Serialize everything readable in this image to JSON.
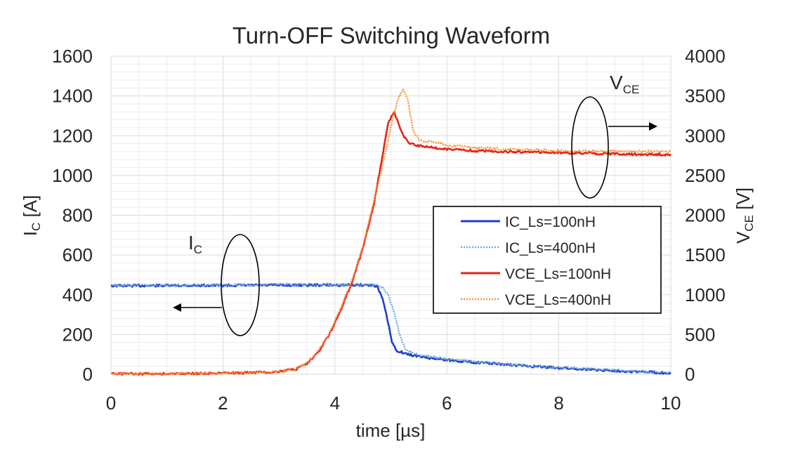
{
  "chart_data": {
    "type": "line",
    "title": "Turn-OFF Switching Waveform",
    "xlabel": "time [µs]",
    "ylabel_left": {
      "main": "I",
      "sub": "C",
      "unit": " [A]"
    },
    "ylabel_right": {
      "main": "V",
      "sub": "CE",
      "unit": " [V]"
    },
    "xlim": [
      0,
      10
    ],
    "ylim_left": [
      0,
      1600
    ],
    "ylim_right": [
      0,
      4000
    ],
    "x_ticks": [
      "0",
      "2",
      "4",
      "6",
      "8",
      "10"
    ],
    "y_left_ticks": [
      "0",
      "200",
      "400",
      "600",
      "800",
      "1000",
      "1200",
      "1400",
      "1600"
    ],
    "y_right_ticks": [
      "0",
      "500",
      "1000",
      "1500",
      "2000",
      "2500",
      "3000",
      "3500",
      "4000"
    ],
    "grid": true,
    "legend_position": "center-right",
    "annotations": {
      "ic": {
        "main": "I",
        "sub": "C"
      },
      "vce": {
        "main": "V",
        "sub": "CE"
      }
    },
    "series": [
      {
        "name": "IC_Ls=100nH",
        "axis": "left",
        "color": "#1f3fc8",
        "dash": "solid",
        "points": [
          [
            0,
            445
          ],
          [
            1,
            446
          ],
          [
            2,
            447
          ],
          [
            3,
            448
          ],
          [
            4,
            449
          ],
          [
            4.6,
            449
          ],
          [
            4.75,
            445
          ],
          [
            4.85,
            380
          ],
          [
            4.95,
            260
          ],
          [
            5.02,
            160
          ],
          [
            5.1,
            120
          ],
          [
            5.3,
            100
          ],
          [
            5.6,
            85
          ],
          [
            6,
            72
          ],
          [
            6.5,
            60
          ],
          [
            7,
            50
          ],
          [
            7.5,
            40
          ],
          [
            8,
            32
          ],
          [
            8.5,
            25
          ],
          [
            9,
            18
          ],
          [
            9.5,
            12
          ],
          [
            10,
            6
          ]
        ]
      },
      {
        "name": "IC_Ls=400nH",
        "axis": "left",
        "color": "#6ea8e0",
        "dash": "dotted",
        "points": [
          [
            0,
            447
          ],
          [
            1,
            448
          ],
          [
            2,
            449
          ],
          [
            3,
            450
          ],
          [
            4,
            451
          ],
          [
            4.7,
            451
          ],
          [
            4.85,
            440
          ],
          [
            4.95,
            400
          ],
          [
            5.05,
            320
          ],
          [
            5.15,
            210
          ],
          [
            5.25,
            130
          ],
          [
            5.4,
            103
          ],
          [
            5.7,
            88
          ],
          [
            6,
            76
          ],
          [
            6.5,
            63
          ],
          [
            7,
            52
          ],
          [
            7.5,
            42
          ],
          [
            8,
            34
          ],
          [
            8.5,
            27
          ],
          [
            9,
            20
          ],
          [
            9.5,
            14
          ],
          [
            10,
            8
          ]
        ]
      },
      {
        "name": "VCE_Ls=100nH",
        "axis": "right",
        "color": "#e8231a",
        "dash": "solid",
        "points": [
          [
            0,
            5
          ],
          [
            1,
            8
          ],
          [
            2,
            12
          ],
          [
            2.5,
            20
          ],
          [
            3,
            35
          ],
          [
            3.3,
            65
          ],
          [
            3.5,
            130
          ],
          [
            3.7,
            280
          ],
          [
            3.9,
            500
          ],
          [
            4.1,
            800
          ],
          [
            4.3,
            1150
          ],
          [
            4.5,
            1580
          ],
          [
            4.7,
            2150
          ],
          [
            4.85,
            2750
          ],
          [
            4.95,
            3150
          ],
          [
            5.05,
            3300
          ],
          [
            5.1,
            3230
          ],
          [
            5.2,
            3030
          ],
          [
            5.3,
            2920
          ],
          [
            5.5,
            2870
          ],
          [
            6,
            2830
          ],
          [
            6.5,
            2810
          ],
          [
            7,
            2800
          ],
          [
            8,
            2790
          ],
          [
            9,
            2770
          ],
          [
            10,
            2760
          ]
        ]
      },
      {
        "name": "VCE_Ls=400nH",
        "axis": "right",
        "color": "#f0963c",
        "dash": "dotted",
        "points": [
          [
            0,
            5
          ],
          [
            1,
            8
          ],
          [
            2,
            12
          ],
          [
            2.5,
            20
          ],
          [
            3,
            35
          ],
          [
            3.3,
            65
          ],
          [
            3.5,
            135
          ],
          [
            3.7,
            290
          ],
          [
            3.9,
            510
          ],
          [
            4.1,
            820
          ],
          [
            4.3,
            1170
          ],
          [
            4.5,
            1600
          ],
          [
            4.7,
            2180
          ],
          [
            4.9,
            2780
          ],
          [
            5.05,
            3270
          ],
          [
            5.15,
            3500
          ],
          [
            5.22,
            3580
          ],
          [
            5.3,
            3450
          ],
          [
            5.4,
            3070
          ],
          [
            5.5,
            2950
          ],
          [
            6,
            2880
          ],
          [
            6.5,
            2850
          ],
          [
            7,
            2830
          ],
          [
            8,
            2810
          ],
          [
            9,
            2800
          ],
          [
            10,
            2800
          ]
        ]
      }
    ]
  }
}
